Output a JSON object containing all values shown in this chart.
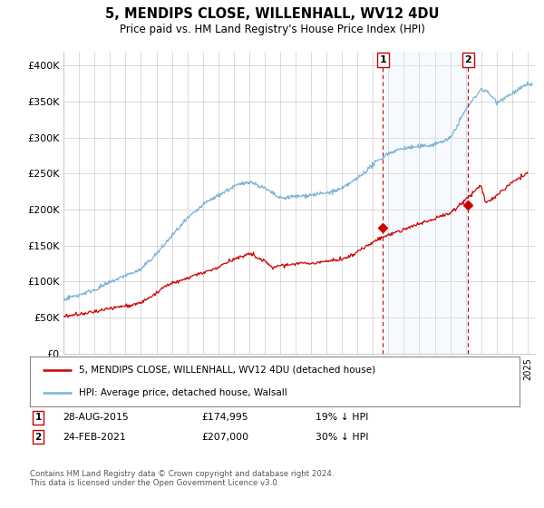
{
  "title": "5, MENDIPS CLOSE, WILLENHALL, WV12 4DU",
  "subtitle": "Price paid vs. HM Land Registry's House Price Index (HPI)",
  "ylabel_ticks": [
    "£0",
    "£50K",
    "£100K",
    "£150K",
    "£200K",
    "£250K",
    "£300K",
    "£350K",
    "£400K"
  ],
  "ytick_vals": [
    0,
    50000,
    100000,
    150000,
    200000,
    250000,
    300000,
    350000,
    400000
  ],
  "ylim": [
    0,
    420000
  ],
  "xlim_start": 1995.3,
  "xlim_end": 2025.5,
  "hpi_color": "#7ab3d4",
  "price_color": "#cc0000",
  "vline_color": "#cc0000",
  "shade_color": "#ddeeff",
  "marker1_date": 2015.65,
  "marker1_price": 174995,
  "marker2_date": 2021.15,
  "marker2_price": 207000,
  "legend_line1": "5, MENDIPS CLOSE, WILLENHALL, WV12 4DU (detached house)",
  "legend_line2": "HPI: Average price, detached house, Walsall",
  "footnote": "Contains HM Land Registry data © Crown copyright and database right 2024.\nThis data is licensed under the Open Government Licence v3.0.",
  "background_color": "#ffffff",
  "grid_color": "#cccccc"
}
